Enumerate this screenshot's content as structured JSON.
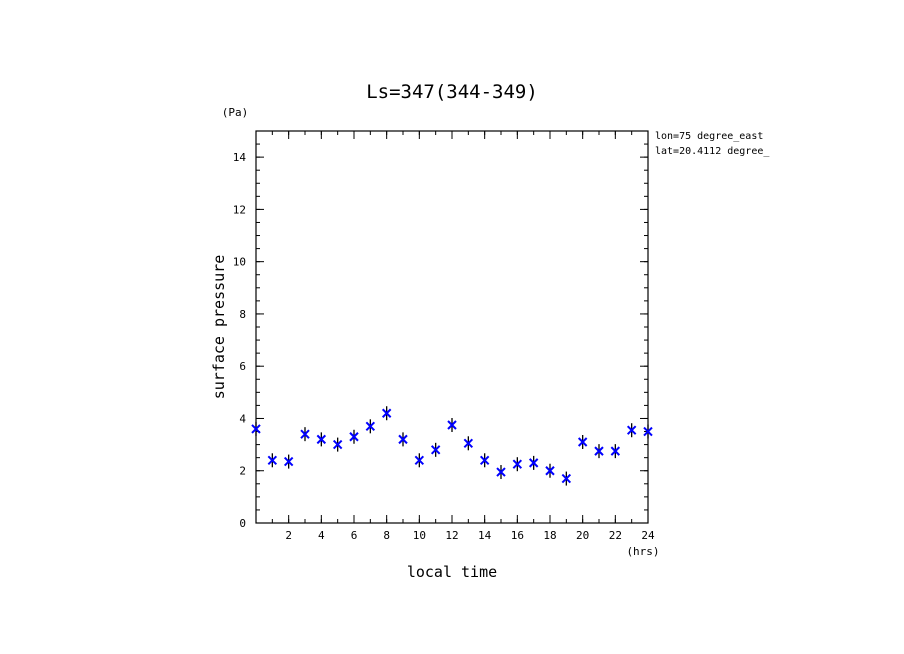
{
  "chart_data": {
    "type": "scatter",
    "title": "Ls=347(344-349)",
    "xlabel": "local time",
    "ylabel": "surface pressure",
    "x_unit": "(hrs)",
    "y_unit": "(Pa)",
    "annotations": [
      "lon=75 degree_east",
      "lat=20.4112 degree_"
    ],
    "xlim": [
      0,
      24
    ],
    "ylim": [
      0,
      15
    ],
    "x_ticks": [
      2,
      4,
      6,
      8,
      10,
      12,
      14,
      16,
      18,
      20,
      22,
      24
    ],
    "y_ticks": [
      0,
      2,
      4,
      6,
      8,
      10,
      12,
      14
    ],
    "grid": false,
    "marker_color": "#0000ff",
    "errorbar_color": "#000000",
    "series": [
      {
        "x": [
          0,
          1,
          2,
          3,
          4,
          5,
          6,
          7,
          8,
          9,
          10,
          11,
          12,
          13,
          14,
          15,
          16,
          17,
          18,
          19,
          20,
          21,
          22,
          23,
          24
        ],
        "values": [
          3.6,
          2.4,
          2.35,
          3.4,
          3.2,
          3.0,
          3.3,
          3.7,
          4.2,
          3.2,
          2.4,
          2.8,
          3.75,
          3.05,
          2.4,
          1.95,
          2.25,
          2.3,
          2.0,
          1.7,
          3.1,
          2.75,
          2.75,
          3.55,
          3.5
        ]
      }
    ]
  }
}
